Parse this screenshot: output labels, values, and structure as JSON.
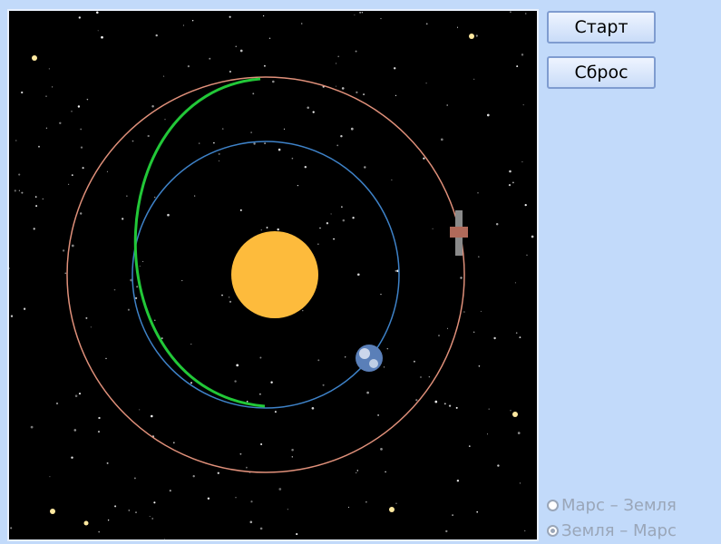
{
  "buttons": {
    "start": "Старт",
    "reset": "Сброс"
  },
  "options": [
    {
      "label": "Марс – Земля",
      "checked": false
    },
    {
      "label": "Земля – Марс",
      "checked": true
    }
  ]
}
